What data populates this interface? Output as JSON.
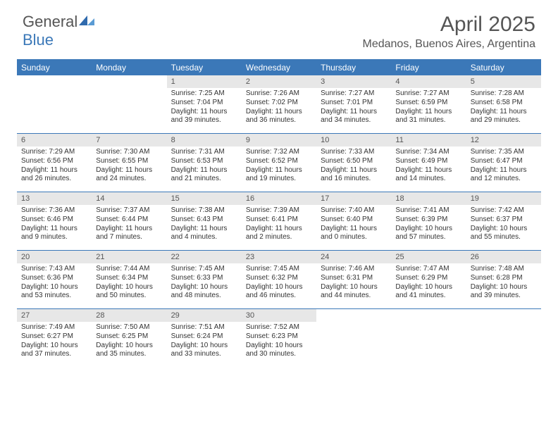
{
  "logo": {
    "general": "General",
    "blue": "Blue"
  },
  "header": {
    "title": "April 2025",
    "location": "Medanos, Buenos Aires, Argentina"
  },
  "colors": {
    "brand": "#3b78b8",
    "header_text": "#555555",
    "daynum_bg": "#e7e7e7",
    "body_text": "#333333",
    "background": "#ffffff"
  },
  "days_of_week": [
    "Sunday",
    "Monday",
    "Tuesday",
    "Wednesday",
    "Thursday",
    "Friday",
    "Saturday"
  ],
  "calendar": {
    "type": "table",
    "weeks": [
      [
        null,
        null,
        {
          "n": "1",
          "sr": "Sunrise: 7:25 AM",
          "ss": "Sunset: 7:04 PM",
          "d1": "Daylight: 11 hours",
          "d2": "and 39 minutes."
        },
        {
          "n": "2",
          "sr": "Sunrise: 7:26 AM",
          "ss": "Sunset: 7:02 PM",
          "d1": "Daylight: 11 hours",
          "d2": "and 36 minutes."
        },
        {
          "n": "3",
          "sr": "Sunrise: 7:27 AM",
          "ss": "Sunset: 7:01 PM",
          "d1": "Daylight: 11 hours",
          "d2": "and 34 minutes."
        },
        {
          "n": "4",
          "sr": "Sunrise: 7:27 AM",
          "ss": "Sunset: 6:59 PM",
          "d1": "Daylight: 11 hours",
          "d2": "and 31 minutes."
        },
        {
          "n": "5",
          "sr": "Sunrise: 7:28 AM",
          "ss": "Sunset: 6:58 PM",
          "d1": "Daylight: 11 hours",
          "d2": "and 29 minutes."
        }
      ],
      [
        {
          "n": "6",
          "sr": "Sunrise: 7:29 AM",
          "ss": "Sunset: 6:56 PM",
          "d1": "Daylight: 11 hours",
          "d2": "and 26 minutes."
        },
        {
          "n": "7",
          "sr": "Sunrise: 7:30 AM",
          "ss": "Sunset: 6:55 PM",
          "d1": "Daylight: 11 hours",
          "d2": "and 24 minutes."
        },
        {
          "n": "8",
          "sr": "Sunrise: 7:31 AM",
          "ss": "Sunset: 6:53 PM",
          "d1": "Daylight: 11 hours",
          "d2": "and 21 minutes."
        },
        {
          "n": "9",
          "sr": "Sunrise: 7:32 AM",
          "ss": "Sunset: 6:52 PM",
          "d1": "Daylight: 11 hours",
          "d2": "and 19 minutes."
        },
        {
          "n": "10",
          "sr": "Sunrise: 7:33 AM",
          "ss": "Sunset: 6:50 PM",
          "d1": "Daylight: 11 hours",
          "d2": "and 16 minutes."
        },
        {
          "n": "11",
          "sr": "Sunrise: 7:34 AM",
          "ss": "Sunset: 6:49 PM",
          "d1": "Daylight: 11 hours",
          "d2": "and 14 minutes."
        },
        {
          "n": "12",
          "sr": "Sunrise: 7:35 AM",
          "ss": "Sunset: 6:47 PM",
          "d1": "Daylight: 11 hours",
          "d2": "and 12 minutes."
        }
      ],
      [
        {
          "n": "13",
          "sr": "Sunrise: 7:36 AM",
          "ss": "Sunset: 6:46 PM",
          "d1": "Daylight: 11 hours",
          "d2": "and 9 minutes."
        },
        {
          "n": "14",
          "sr": "Sunrise: 7:37 AM",
          "ss": "Sunset: 6:44 PM",
          "d1": "Daylight: 11 hours",
          "d2": "and 7 minutes."
        },
        {
          "n": "15",
          "sr": "Sunrise: 7:38 AM",
          "ss": "Sunset: 6:43 PM",
          "d1": "Daylight: 11 hours",
          "d2": "and 4 minutes."
        },
        {
          "n": "16",
          "sr": "Sunrise: 7:39 AM",
          "ss": "Sunset: 6:41 PM",
          "d1": "Daylight: 11 hours",
          "d2": "and 2 minutes."
        },
        {
          "n": "17",
          "sr": "Sunrise: 7:40 AM",
          "ss": "Sunset: 6:40 PM",
          "d1": "Daylight: 11 hours",
          "d2": "and 0 minutes."
        },
        {
          "n": "18",
          "sr": "Sunrise: 7:41 AM",
          "ss": "Sunset: 6:39 PM",
          "d1": "Daylight: 10 hours",
          "d2": "and 57 minutes."
        },
        {
          "n": "19",
          "sr": "Sunrise: 7:42 AM",
          "ss": "Sunset: 6:37 PM",
          "d1": "Daylight: 10 hours",
          "d2": "and 55 minutes."
        }
      ],
      [
        {
          "n": "20",
          "sr": "Sunrise: 7:43 AM",
          "ss": "Sunset: 6:36 PM",
          "d1": "Daylight: 10 hours",
          "d2": "and 53 minutes."
        },
        {
          "n": "21",
          "sr": "Sunrise: 7:44 AM",
          "ss": "Sunset: 6:34 PM",
          "d1": "Daylight: 10 hours",
          "d2": "and 50 minutes."
        },
        {
          "n": "22",
          "sr": "Sunrise: 7:45 AM",
          "ss": "Sunset: 6:33 PM",
          "d1": "Daylight: 10 hours",
          "d2": "and 48 minutes."
        },
        {
          "n": "23",
          "sr": "Sunrise: 7:45 AM",
          "ss": "Sunset: 6:32 PM",
          "d1": "Daylight: 10 hours",
          "d2": "and 46 minutes."
        },
        {
          "n": "24",
          "sr": "Sunrise: 7:46 AM",
          "ss": "Sunset: 6:31 PM",
          "d1": "Daylight: 10 hours",
          "d2": "and 44 minutes."
        },
        {
          "n": "25",
          "sr": "Sunrise: 7:47 AM",
          "ss": "Sunset: 6:29 PM",
          "d1": "Daylight: 10 hours",
          "d2": "and 41 minutes."
        },
        {
          "n": "26",
          "sr": "Sunrise: 7:48 AM",
          "ss": "Sunset: 6:28 PM",
          "d1": "Daylight: 10 hours",
          "d2": "and 39 minutes."
        }
      ],
      [
        {
          "n": "27",
          "sr": "Sunrise: 7:49 AM",
          "ss": "Sunset: 6:27 PM",
          "d1": "Daylight: 10 hours",
          "d2": "and 37 minutes."
        },
        {
          "n": "28",
          "sr": "Sunrise: 7:50 AM",
          "ss": "Sunset: 6:25 PM",
          "d1": "Daylight: 10 hours",
          "d2": "and 35 minutes."
        },
        {
          "n": "29",
          "sr": "Sunrise: 7:51 AM",
          "ss": "Sunset: 6:24 PM",
          "d1": "Daylight: 10 hours",
          "d2": "and 33 minutes."
        },
        {
          "n": "30",
          "sr": "Sunrise: 7:52 AM",
          "ss": "Sunset: 6:23 PM",
          "d1": "Daylight: 10 hours",
          "d2": "and 30 minutes."
        },
        null,
        null,
        null
      ]
    ]
  }
}
